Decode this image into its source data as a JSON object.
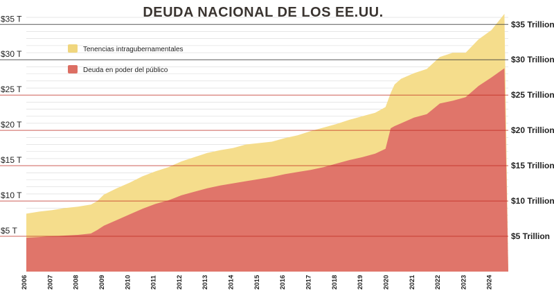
{
  "chart_data": {
    "type": "area",
    "stacked": true,
    "title": "DEUDA NACIONAL DE LOS EE.UU.",
    "x": [
      2006,
      2006.5,
      2007,
      2007.5,
      2008,
      2008.5,
      2008.75,
      2009,
      2009.5,
      2010,
      2010.5,
      2011,
      2011.5,
      2012,
      2012.5,
      2013,
      2013.5,
      2014,
      2014.5,
      2015,
      2015.5,
      2016,
      2016.5,
      2017,
      2017.5,
      2018,
      2018.5,
      2019,
      2019.5,
      2019.9,
      2020.1,
      2020.25,
      2020.5,
      2021,
      2021.5,
      2022,
      2022.5,
      2023,
      2023.5,
      2024,
      2024.5
    ],
    "x_ticks": [
      "2006",
      "2007",
      "2008",
      "2009",
      "2010",
      "2011",
      "2012",
      "2013",
      "2014",
      "2015",
      "2016",
      "2017",
      "2018",
      "2019",
      "2020",
      "2021",
      "2022",
      "2023",
      "2024"
    ],
    "y_ticks_left": [
      "$5 T",
      "$10 T",
      "$15 T",
      "$20 T",
      "$25 T",
      "$30 T",
      "$35 T"
    ],
    "y_ticks_right": [
      "$5 Trillion",
      "$10 Trillion",
      "$15 Trillion",
      "$20 Trillion",
      "$25 Trillion",
      "$30 Trillion",
      "$35 Trillion"
    ],
    "y_tick_values": [
      5,
      10,
      15,
      20,
      25,
      30,
      35
    ],
    "ylim": [
      0,
      36.5
    ],
    "xlim": [
      2006,
      2024.65
    ],
    "series": [
      {
        "name": "Deuda en poder del público",
        "color": "#e0756a",
        "values": [
          4.8,
          4.9,
          5.0,
          5.1,
          5.2,
          5.4,
          5.9,
          6.5,
          7.3,
          8.1,
          8.9,
          9.6,
          10.1,
          10.8,
          11.3,
          11.8,
          12.2,
          12.5,
          12.8,
          13.1,
          13.4,
          13.8,
          14.1,
          14.4,
          14.8,
          15.3,
          15.8,
          16.2,
          16.7,
          17.4,
          20.3,
          20.6,
          21.0,
          21.8,
          22.3,
          23.8,
          24.2,
          24.7,
          26.3,
          27.5,
          28.8
        ]
      },
      {
        "name": "Tenencias intragubernamentales",
        "color": "#f5dd8c",
        "values": [
          3.4,
          3.6,
          3.7,
          3.9,
          4.0,
          4.1,
          4.1,
          4.4,
          4.5,
          4.5,
          4.6,
          4.6,
          4.7,
          4.8,
          4.9,
          5.0,
          5.0,
          5.0,
          5.2,
          5.1,
          5.0,
          5.1,
          5.2,
          5.5,
          5.6,
          5.6,
          5.7,
          5.8,
          5.8,
          5.9,
          5.0,
          5.9,
          6.3,
          6.3,
          6.4,
          6.6,
          6.8,
          6.3,
          6.6,
          6.7,
          7.7
        ]
      }
    ],
    "grid": true,
    "legend_position": "top-left"
  }
}
